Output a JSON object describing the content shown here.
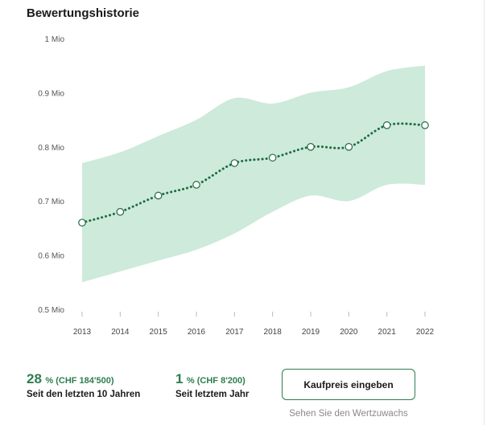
{
  "header": {
    "title": "Bewertungshistorie"
  },
  "chart_data": {
    "type": "line",
    "title": "",
    "xlabel": "",
    "ylabel": "",
    "ylim": [
      0.5,
      1.0
    ],
    "y_tick_labels": [
      "0.5 Mio",
      "0.6 Mio",
      "0.7 Mio",
      "0.8 Mio",
      "0.9 Mio",
      "1 Mio"
    ],
    "y_ticks": [
      0.5,
      0.6,
      0.7,
      0.8,
      0.9,
      1.0
    ],
    "x": [
      "2013",
      "2014",
      "2015",
      "2016",
      "2017",
      "2018",
      "2019",
      "2020",
      "2021",
      "2022"
    ],
    "series": [
      {
        "values": [
          0.66,
          0.68,
          0.71,
          0.73,
          0.77,
          0.78,
          0.8,
          0.8,
          0.84,
          0.84
        ]
      }
    ],
    "band": {
      "upper": [
        0.77,
        0.79,
        0.82,
        0.85,
        0.89,
        0.88,
        0.9,
        0.91,
        0.94,
        0.95
      ],
      "lower": [
        0.55,
        0.57,
        0.59,
        0.61,
        0.64,
        0.68,
        0.71,
        0.7,
        0.73,
        0.73
      ]
    },
    "colors": {
      "line": "#1f6b3f",
      "band": "#cdeadb",
      "marker_fill": "#ffffff"
    },
    "grid": false
  },
  "stats": [
    {
      "big": "28",
      "detail": "% (CHF 184'500)",
      "label": "Seit den letzten 10 Jahren"
    },
    {
      "big": "1",
      "detail": "% (CHF 8'200)",
      "label": "Seit letztem Jahr"
    }
  ],
  "actions": {
    "purchase_button": "Kaufpreis eingeben",
    "hint": "Sehen Sie den Wertzuwachs"
  }
}
